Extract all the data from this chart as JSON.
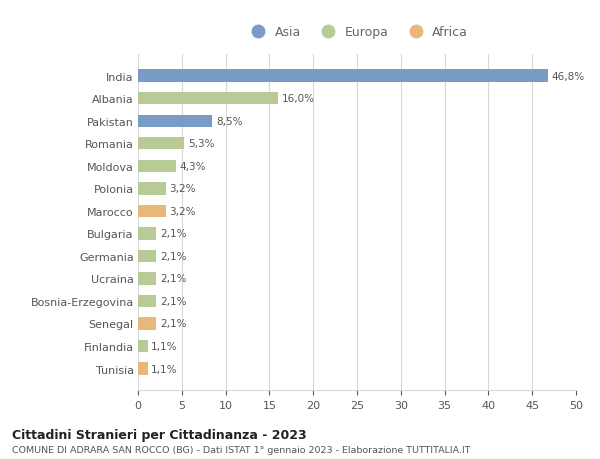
{
  "countries": [
    "India",
    "Albania",
    "Pakistan",
    "Romania",
    "Moldova",
    "Polonia",
    "Marocco",
    "Bulgaria",
    "Germania",
    "Ucraina",
    "Bosnia-Erzegovina",
    "Senegal",
    "Finlandia",
    "Tunisia"
  ],
  "values": [
    46.8,
    16.0,
    8.5,
    5.3,
    4.3,
    3.2,
    3.2,
    2.1,
    2.1,
    2.1,
    2.1,
    2.1,
    1.1,
    1.1
  ],
  "labels": [
    "46,8%",
    "16,0%",
    "8,5%",
    "5,3%",
    "4,3%",
    "3,2%",
    "3,2%",
    "2,1%",
    "2,1%",
    "2,1%",
    "2,1%",
    "2,1%",
    "1,1%",
    "1,1%"
  ],
  "continent": [
    "Asia",
    "Europa",
    "Asia",
    "Europa",
    "Europa",
    "Europa",
    "Africa",
    "Europa",
    "Europa",
    "Europa",
    "Europa",
    "Africa",
    "Europa",
    "Africa"
  ],
  "colors": {
    "Asia": "#7a9cc4",
    "Europa": "#b8ca96",
    "Africa": "#e8b87a"
  },
  "legend_order": [
    "Asia",
    "Europa",
    "Africa"
  ],
  "xlim": [
    0,
    50
  ],
  "xticks": [
    0,
    5,
    10,
    15,
    20,
    25,
    30,
    35,
    40,
    45,
    50
  ],
  "title": "Cittadini Stranieri per Cittadinanza - 2023",
  "subtitle": "COMUNE DI ADRARA SAN ROCCO (BG) - Dati ISTAT 1° gennaio 2023 - Elaborazione TUTTITALIA.IT",
  "background_color": "#ffffff",
  "grid_color": "#d8d8d8"
}
